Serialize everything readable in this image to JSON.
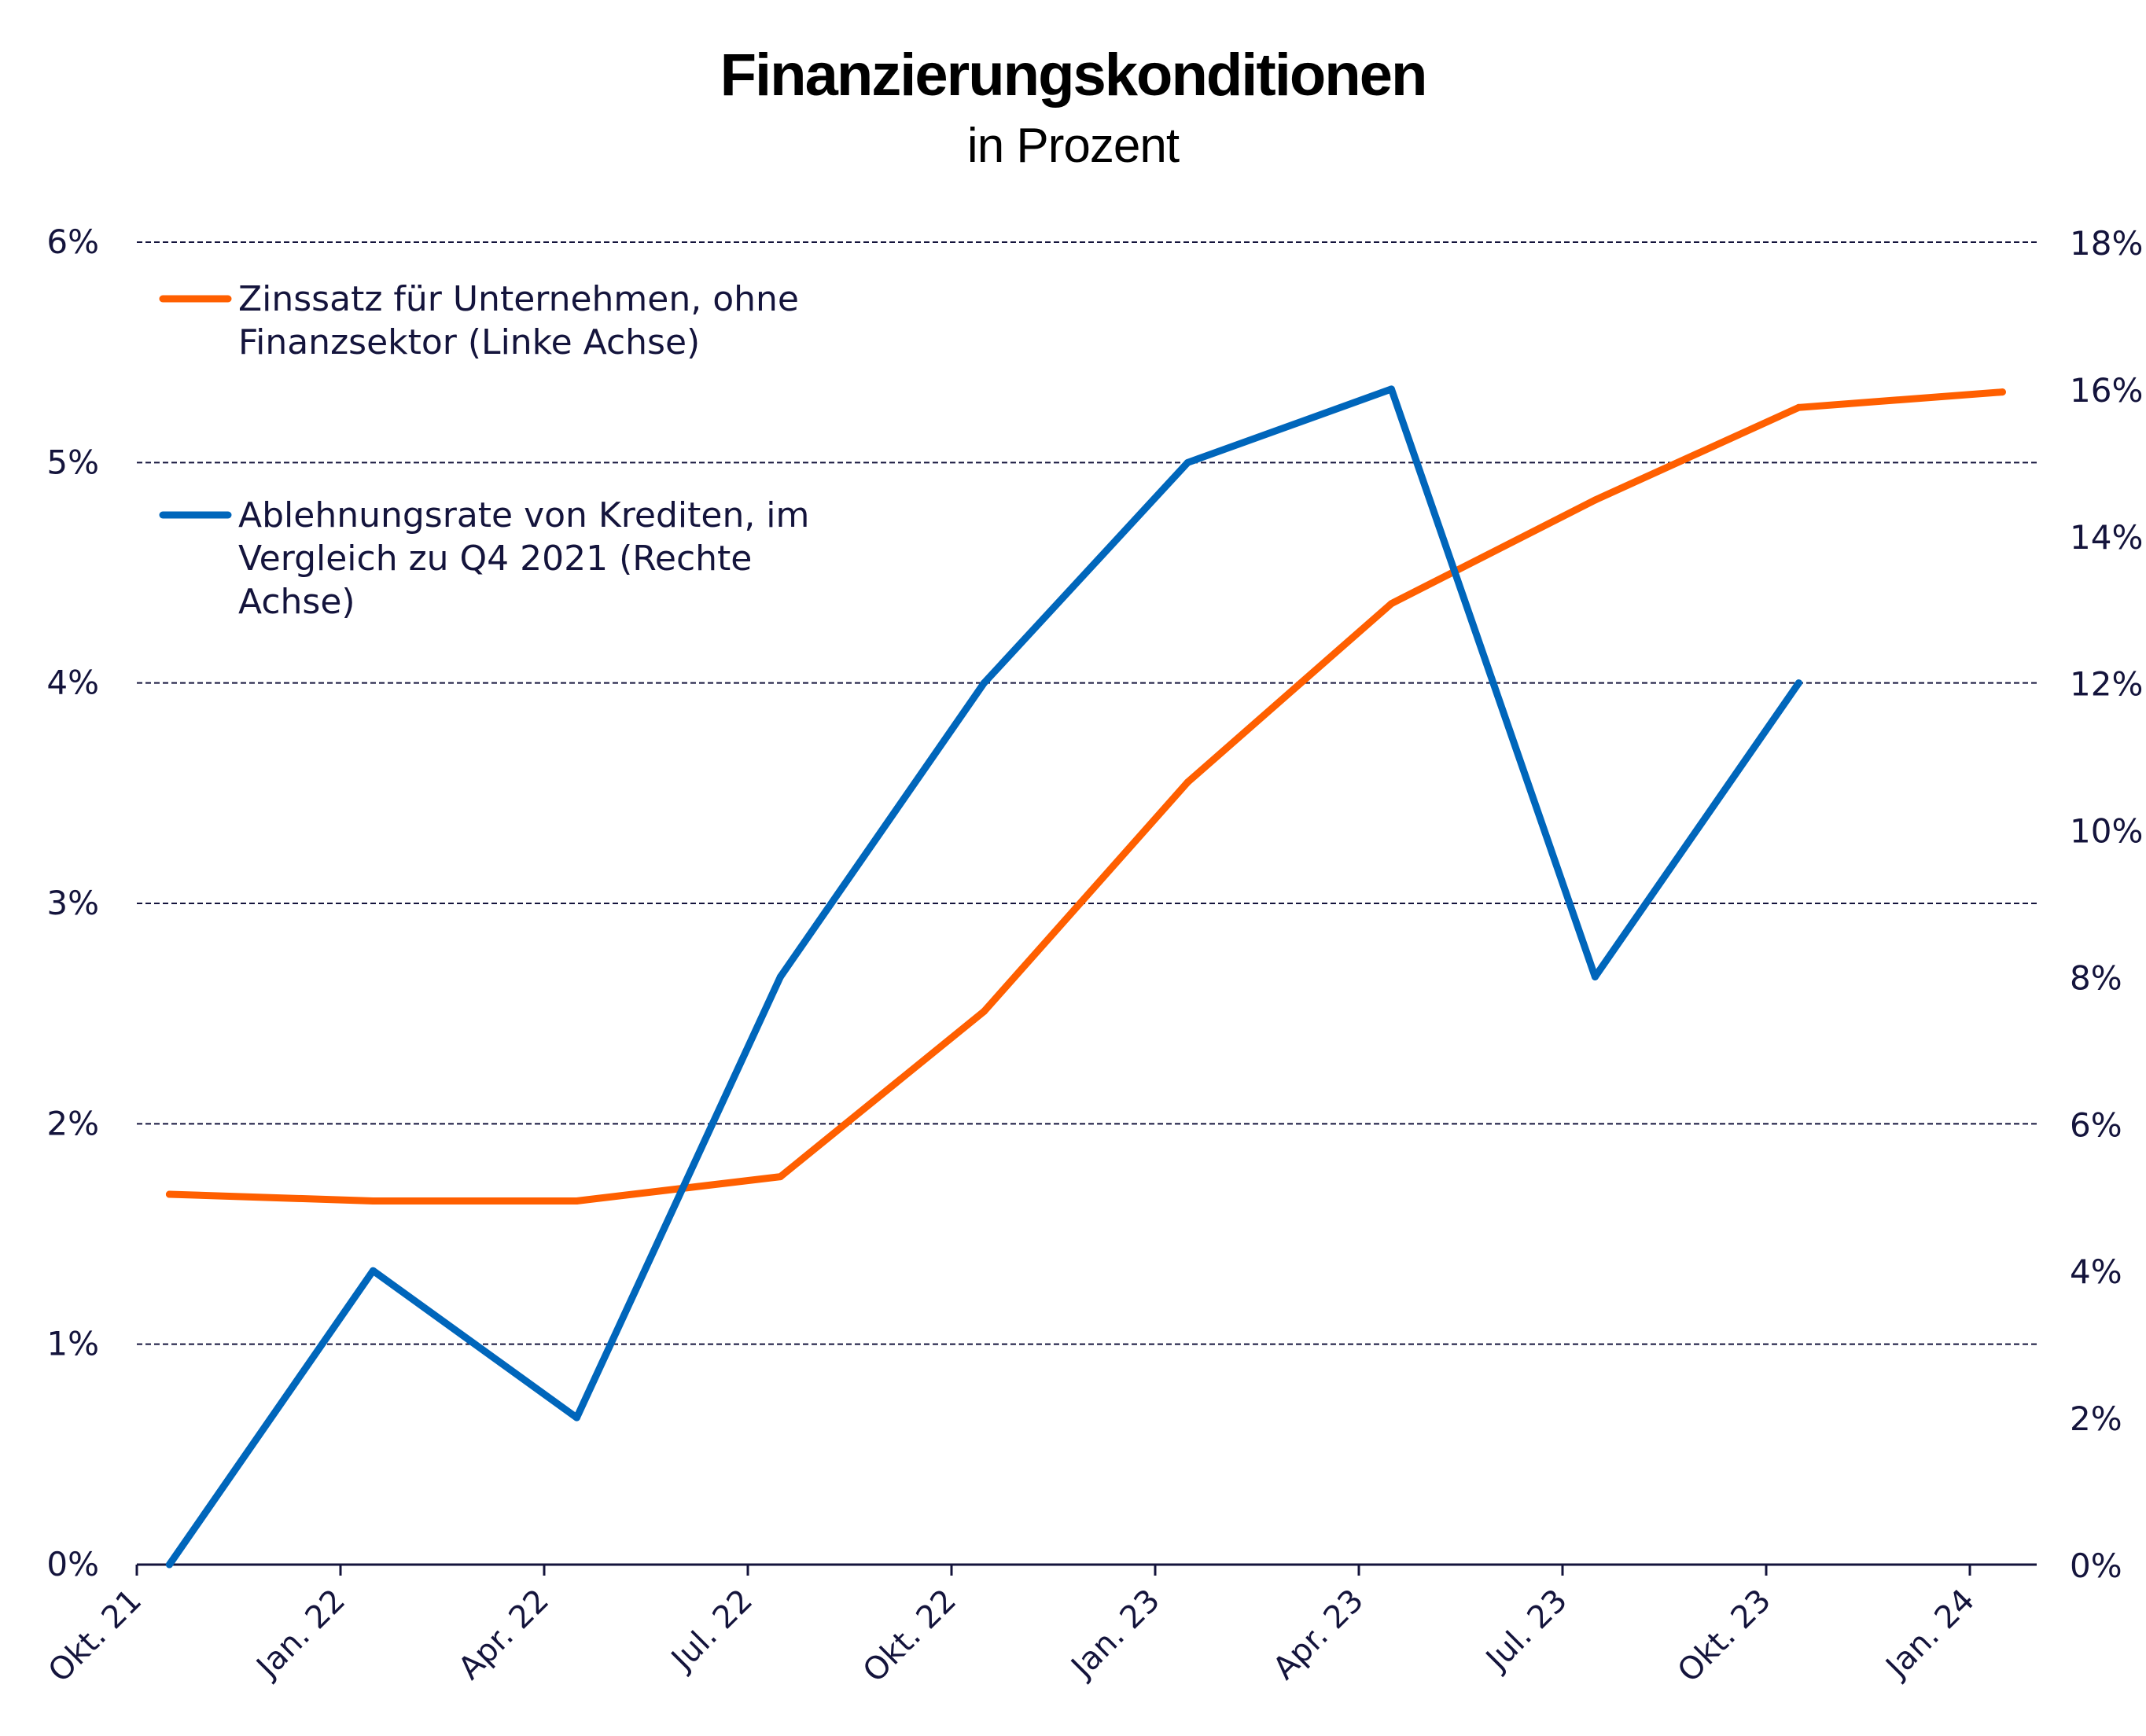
{
  "chart_data": {
    "type": "line",
    "title": "Finanzierungskonditionen",
    "subtitle": "in Prozent",
    "categories": [
      "Okt. 21",
      "Jan. 22",
      "Apr. 22",
      "Jul. 22",
      "Okt. 22",
      "Jan. 23",
      "Apr. 23",
      "Jul. 23",
      "Okt. 23",
      "Jan. 24"
    ],
    "left_axis": {
      "ticks": [
        "0%",
        "1%",
        "2%",
        "3%",
        "4%",
        "5%",
        "6%"
      ],
      "ylim": [
        0,
        6
      ]
    },
    "right_axis": {
      "ticks": [
        "0%",
        "2%",
        "4%",
        "6%",
        "8%",
        "10%",
        "12%",
        "14%",
        "16%",
        "18%"
      ],
      "ylim": [
        0,
        18
      ]
    },
    "grid": true,
    "legend_position": "top-left",
    "series": [
      {
        "name": "Zinssatz für Unternehmen, ohne Finanzsektor (Linke Achse)",
        "legend_lines": [
          "Zinssatz für Unternehmen, ohne",
          "Finanzsektor (Linke Achse)"
        ],
        "axis": "left",
        "color": "#ff5f00",
        "x": [
          0.16,
          1.16,
          2.16,
          3.16,
          4.16,
          5.16,
          6.16,
          7.16,
          8.16,
          9.16
        ],
        "values": [
          1.68,
          1.65,
          1.65,
          1.76,
          2.51,
          3.55,
          4.36,
          4.83,
          5.25,
          5.32
        ]
      },
      {
        "name": "Ablehnungsrate von Krediten, im Vergleich zu Q4 2021 (Rechte Achse)",
        "legend_lines": [
          "Ablehnungsrate von Krediten, im",
          "Vergleich zu Q4 2021 (Rechte",
          "Achse)"
        ],
        "axis": "right",
        "color": "#0066bb",
        "x": [
          0.16,
          1.16,
          2.16,
          3.16,
          4.16,
          5.16,
          6.16,
          7.16,
          8.16
        ],
        "values": [
          0,
          4,
          2,
          8,
          12,
          15,
          16,
          8,
          12
        ]
      }
    ]
  }
}
